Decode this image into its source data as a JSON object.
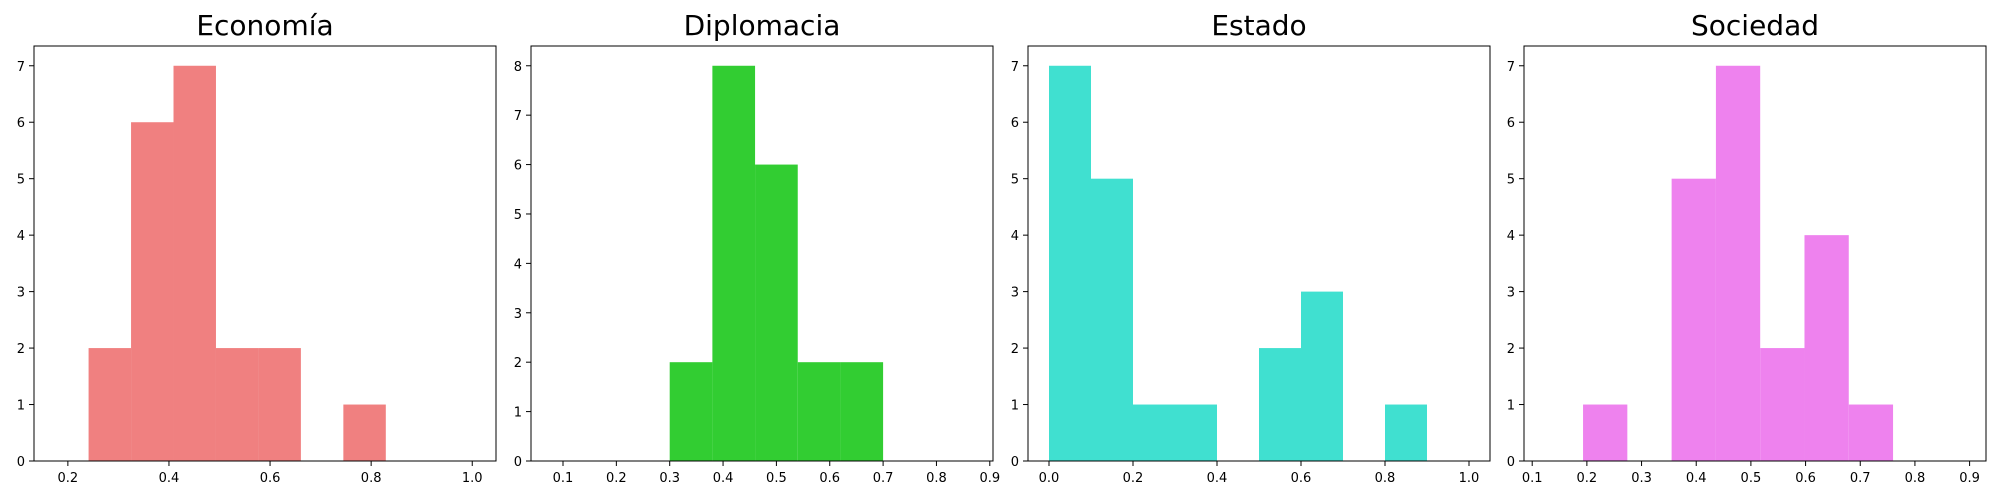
{
  "chart_data": [
    {
      "type": "bar",
      "title": "Economía",
      "color": "#f08080",
      "xlim": [
        0.133,
        1.047
      ],
      "ylim": [
        0,
        7.35
      ],
      "xticks": [
        0.2,
        0.4,
        0.6,
        0.8,
        1.0
      ],
      "xtick_labels": [
        "0.2",
        "0.4",
        "0.6",
        "0.8",
        "1.0"
      ],
      "yticks": [
        0,
        1,
        2,
        3,
        4,
        5,
        6,
        7
      ],
      "bins": [
        {
          "x0": 0.241,
          "x1": 0.325,
          "count": 2
        },
        {
          "x0": 0.325,
          "x1": 0.409,
          "count": 6
        },
        {
          "x0": 0.409,
          "x1": 0.493,
          "count": 7
        },
        {
          "x0": 0.493,
          "x1": 0.577,
          "count": 2
        },
        {
          "x0": 0.577,
          "x1": 0.661,
          "count": 2
        },
        {
          "x0": 0.661,
          "x1": 0.745,
          "count": 0
        },
        {
          "x0": 0.745,
          "x1": 0.829,
          "count": 1
        }
      ]
    },
    {
      "type": "bar",
      "title": "Diplomacia",
      "color": "#32cd32",
      "xlim": [
        0.04,
        0.906
      ],
      "ylim": [
        0,
        8.4
      ],
      "xticks": [
        0.1,
        0.2,
        0.3,
        0.4,
        0.5,
        0.6,
        0.7,
        0.8,
        0.9
      ],
      "xtick_labels": [
        "0.1",
        "0.2",
        "0.3",
        "0.4",
        "0.5",
        "0.6",
        "0.7",
        "0.8",
        "0.9"
      ],
      "yticks": [
        0,
        1,
        2,
        3,
        4,
        5,
        6,
        7,
        8
      ],
      "bins": [
        {
          "x0": 0.3,
          "x1": 0.38,
          "count": 2
        },
        {
          "x0": 0.38,
          "x1": 0.46,
          "count": 8
        },
        {
          "x0": 0.46,
          "x1": 0.54,
          "count": 6
        },
        {
          "x0": 0.54,
          "x1": 0.62,
          "count": 2
        },
        {
          "x0": 0.62,
          "x1": 0.7,
          "count": 2
        }
      ]
    },
    {
      "type": "bar",
      "title": "Estado",
      "color": "#40e0d0",
      "xlim": [
        -0.05,
        1.05
      ],
      "ylim": [
        0,
        7.35
      ],
      "xticks": [
        0.0,
        0.2,
        0.4,
        0.6,
        0.8,
        1.0
      ],
      "xtick_labels": [
        "0.0",
        "0.2",
        "0.4",
        "0.6",
        "0.8",
        "1.0"
      ],
      "yticks": [
        0,
        1,
        2,
        3,
        4,
        5,
        6,
        7
      ],
      "bins": [
        {
          "x0": 0.0,
          "x1": 0.1,
          "count": 7
        },
        {
          "x0": 0.1,
          "x1": 0.2,
          "count": 5
        },
        {
          "x0": 0.2,
          "x1": 0.3,
          "count": 1
        },
        {
          "x0": 0.3,
          "x1": 0.4,
          "count": 1
        },
        {
          "x0": 0.4,
          "x1": 0.5,
          "count": 0
        },
        {
          "x0": 0.5,
          "x1": 0.6,
          "count": 2
        },
        {
          "x0": 0.6,
          "x1": 0.7,
          "count": 3
        },
        {
          "x0": 0.7,
          "x1": 0.8,
          "count": 0
        },
        {
          "x0": 0.8,
          "x1": 0.9,
          "count": 1
        }
      ]
    },
    {
      "type": "bar",
      "title": "Sociedad",
      "color": "#ee82ee",
      "xlim": [
        0.085,
        0.93
      ],
      "ylim": [
        0,
        7.35
      ],
      "xticks": [
        0.1,
        0.2,
        0.3,
        0.4,
        0.5,
        0.6,
        0.7,
        0.8,
        0.9
      ],
      "xtick_labels": [
        "0.1",
        "0.2",
        "0.3",
        "0.4",
        "0.5",
        "0.6",
        "0.7",
        "0.8",
        "0.9"
      ],
      "yticks": [
        0,
        1,
        2,
        3,
        4,
        5,
        6,
        7
      ],
      "bins": [
        {
          "x0": 0.193,
          "x1": 0.274,
          "count": 1
        },
        {
          "x0": 0.274,
          "x1": 0.355,
          "count": 0
        },
        {
          "x0": 0.355,
          "x1": 0.436,
          "count": 5
        },
        {
          "x0": 0.436,
          "x1": 0.517,
          "count": 7
        },
        {
          "x0": 0.517,
          "x1": 0.598,
          "count": 2
        },
        {
          "x0": 0.598,
          "x1": 0.679,
          "count": 4
        },
        {
          "x0": 0.679,
          "x1": 0.76,
          "count": 1
        }
      ]
    }
  ]
}
